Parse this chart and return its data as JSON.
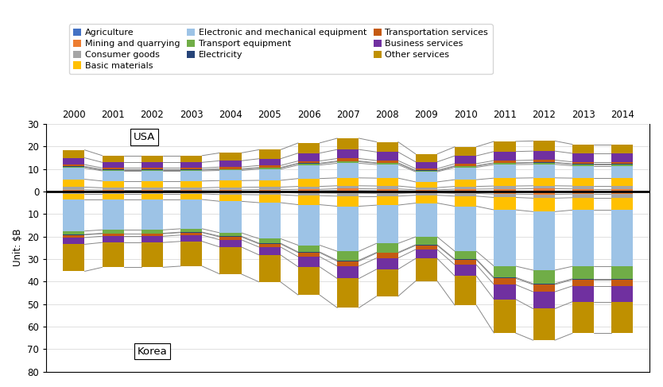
{
  "years": [
    2000,
    2001,
    2002,
    2003,
    2004,
    2005,
    2006,
    2007,
    2008,
    2009,
    2010,
    2011,
    2012,
    2013,
    2014
  ],
  "sectors": [
    "Agriculture",
    "Mining and quarrying",
    "Consumer goods",
    "Basic materials",
    "Electronic and mechanical equipment",
    "Transport equipment",
    "Electricity",
    "Transportation services",
    "Business services",
    "Other services"
  ],
  "legend_order": [
    "Agriculture",
    "Mining and quarrying",
    "Consumer goods",
    "Basic materials",
    "Electronic and mechanical equipment",
    "Transport equipment",
    "Electricity",
    "Transportation services",
    "Business services",
    "Other services"
  ],
  "colors": [
    "#4472C4",
    "#ED7D31",
    "#A5A5A5",
    "#FFC000",
    "#9DC3E6",
    "#70AD47",
    "#264478",
    "#C55A11",
    "#7030A0",
    "#BF9000"
  ],
  "usa_data": [
    [
      0.3,
      0.3,
      0.3,
      0.3,
      0.3,
      0.3,
      0.3,
      0.4,
      0.3,
      0.2,
      0.3,
      0.3,
      0.3,
      0.3,
      0.3
    ],
    [
      0.4,
      0.3,
      0.3,
      0.3,
      0.4,
      0.5,
      0.6,
      0.8,
      0.8,
      0.5,
      0.7,
      0.8,
      0.9,
      0.8,
      0.8
    ],
    [
      1.2,
      1.0,
      1.0,
      1.0,
      1.1,
      1.1,
      1.3,
      1.3,
      1.3,
      1.0,
      1.2,
      1.3,
      1.3,
      1.3,
      1.3
    ],
    [
      3.5,
      3.0,
      3.0,
      3.0,
      3.0,
      3.0,
      3.5,
      3.5,
      3.5,
      2.5,
      3.0,
      3.5,
      3.5,
      3.5,
      3.5
    ],
    [
      5.0,
      4.5,
      4.5,
      4.5,
      4.5,
      5.0,
      6.0,
      6.5,
      6.0,
      4.5,
      5.5,
      6.0,
      6.0,
      5.5,
      5.5
    ],
    [
      0.5,
      0.4,
      0.4,
      0.4,
      0.5,
      0.5,
      0.6,
      0.7,
      0.6,
      0.4,
      0.5,
      0.6,
      0.7,
      0.6,
      0.6
    ],
    [
      0.2,
      0.2,
      0.2,
      0.2,
      0.2,
      0.2,
      0.2,
      0.3,
      0.2,
      0.2,
      0.2,
      0.2,
      0.2,
      0.2,
      0.2
    ],
    [
      0.8,
      0.7,
      0.7,
      0.7,
      0.8,
      0.9,
      1.0,
      1.1,
      1.0,
      0.8,
      0.9,
      1.0,
      1.0,
      0.9,
      0.9
    ],
    [
      3.0,
      2.5,
      2.5,
      2.5,
      2.8,
      3.0,
      3.5,
      4.0,
      3.8,
      3.0,
      3.5,
      4.0,
      4.0,
      3.8,
      3.8
    ],
    [
      3.5,
      3.0,
      3.0,
      3.0,
      3.5,
      4.0,
      4.5,
      5.0,
      4.5,
      3.5,
      4.0,
      4.5,
      4.5,
      4.0,
      4.0
    ]
  ],
  "korea_data": [
    [
      -0.1,
      -0.1,
      -0.1,
      -0.1,
      -0.1,
      -0.1,
      -0.1,
      -0.1,
      -0.1,
      -0.1,
      -0.1,
      -0.2,
      -0.2,
      -0.2,
      -0.2
    ],
    [
      -0.2,
      -0.2,
      -0.2,
      -0.2,
      -0.3,
      -0.4,
      -0.6,
      -0.7,
      -0.8,
      -0.6,
      -0.8,
      -1.0,
      -1.1,
      -1.0,
      -1.0
    ],
    [
      -0.8,
      -0.8,
      -0.8,
      -0.8,
      -1.0,
      -1.0,
      -1.2,
      -1.3,
      -1.2,
      -1.0,
      -1.2,
      -1.5,
      -1.7,
      -1.6,
      -1.6
    ],
    [
      -2.5,
      -2.5,
      -2.5,
      -2.5,
      -3.0,
      -3.5,
      -4.0,
      -4.5,
      -4.0,
      -3.5,
      -4.5,
      -5.5,
      -6.0,
      -5.5,
      -5.5
    ],
    [
      -14.0,
      -13.5,
      -13.5,
      -13.0,
      -14.0,
      -16.0,
      -18.0,
      -20.0,
      -17.0,
      -15.0,
      -20.0,
      -25.0,
      -26.0,
      -25.0,
      -25.0
    ],
    [
      -1.5,
      -1.5,
      -1.5,
      -1.5,
      -1.5,
      -2.0,
      -3.0,
      -4.0,
      -4.0,
      -3.5,
      -3.5,
      -5.0,
      -6.0,
      -5.5,
      -5.5
    ],
    [
      -0.2,
      -0.2,
      -0.2,
      -0.2,
      -0.3,
      -0.3,
      -0.3,
      -0.4,
      -0.3,
      -0.3,
      -0.3,
      -0.4,
      -0.4,
      -0.4,
      -0.4
    ],
    [
      -1.2,
      -1.1,
      -1.1,
      -1.1,
      -1.3,
      -1.4,
      -1.8,
      -2.2,
      -2.2,
      -1.8,
      -2.2,
      -2.8,
      -3.2,
      -2.8,
      -2.8
    ],
    [
      -3.0,
      -2.8,
      -2.8,
      -2.8,
      -3.2,
      -3.5,
      -4.5,
      -5.5,
      -5.0,
      -4.0,
      -5.0,
      -6.5,
      -7.5,
      -7.0,
      -7.0
    ],
    [
      -12.0,
      -11.0,
      -11.0,
      -11.0,
      -12.0,
      -12.0,
      -12.5,
      -13.0,
      -12.0,
      -10.0,
      -13.0,
      -15.0,
      -14.0,
      -14.0,
      -14.0
    ]
  ],
  "ylabel": "Unit: $B",
  "ylim": [
    -80,
    30
  ],
  "yticks": [
    30,
    20,
    10,
    0,
    -10,
    -20,
    -30,
    -40,
    -50,
    -60,
    -70,
    -80
  ],
  "ytick_labels": [
    "30",
    "20",
    "10",
    "0",
    "10",
    "20",
    "30",
    "40",
    "50",
    "60",
    "70",
    "80"
  ]
}
